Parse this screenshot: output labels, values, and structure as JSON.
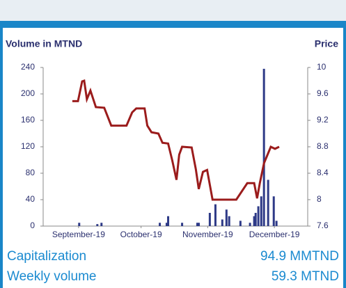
{
  "chart_data": {
    "type": "combo",
    "ylabel": "Volume in MTND",
    "y2label": "Price",
    "xlim": [
      0,
      127
    ],
    "xticks": [
      {
        "value": 17,
        "label": "September-19"
      },
      {
        "value": 47,
        "label": "October-19"
      },
      {
        "value": 79,
        "label": "November-19"
      },
      {
        "value": 111,
        "label": "December-19"
      }
    ],
    "ylim": [
      0,
      240
    ],
    "yticks": [
      0,
      40,
      80,
      120,
      160,
      200,
      240
    ],
    "y2lim": [
      7.6,
      10
    ],
    "y2ticks": [
      7.6,
      8,
      8.4,
      8.8,
      9.2,
      9.6,
      10
    ],
    "series": [
      {
        "type": "bar",
        "color": "#2e3a87",
        "x": [
          17.3,
          26,
          28,
          56,
          60,
          59.3,
          66.7,
          74.7,
          74,
          80,
          82.7,
          86,
          88,
          89.3,
          94.7,
          99.3,
          101.3,
          102,
          103.3,
          104.7,
          106,
          108,
          110.7,
          112
        ],
        "values": [
          5,
          3,
          5,
          5,
          15,
          5,
          5,
          5,
          5,
          20,
          33,
          10,
          25,
          15,
          8,
          5,
          15,
          20,
          30,
          45,
          238,
          70,
          45,
          8
        ]
      },
      {
        "type": "line",
        "color": "#9b1c1c",
        "axis": "y2",
        "x": [
          14,
          16.7,
          18.7,
          19.7,
          21,
          22.7,
          25.3,
          29.3,
          32.7,
          38.7,
          40,
          42.7,
          44.7,
          48.7,
          50,
          52,
          55.3,
          57.3,
          60,
          62,
          64,
          65.3,
          66.7,
          71.3,
          73.3,
          74.7,
          76.7,
          78.7,
          81.3,
          87.3,
          92.7,
          98,
          101.3,
          102.7,
          104,
          106,
          109.3,
          111.3,
          113.3
        ],
        "values": [
          9.49,
          9.49,
          9.79,
          9.8,
          9.52,
          9.65,
          9.4,
          9.39,
          9.12,
          9.12,
          9.12,
          9.32,
          9.38,
          9.38,
          9.12,
          9.02,
          9.0,
          8.86,
          8.85,
          8.59,
          8.3,
          8.68,
          8.8,
          8.79,
          8.46,
          8.16,
          8.42,
          8.45,
          8.0,
          8.0,
          8.0,
          8.25,
          8.25,
          8.02,
          8.25,
          8.55,
          8.8,
          8.77,
          8.8
        ]
      }
    ]
  },
  "stats": [
    {
      "label": "Capitalization",
      "value": "94.9 MMTND"
    },
    {
      "label": "Weekly volume",
      "value": "59.3 MTND"
    }
  ]
}
